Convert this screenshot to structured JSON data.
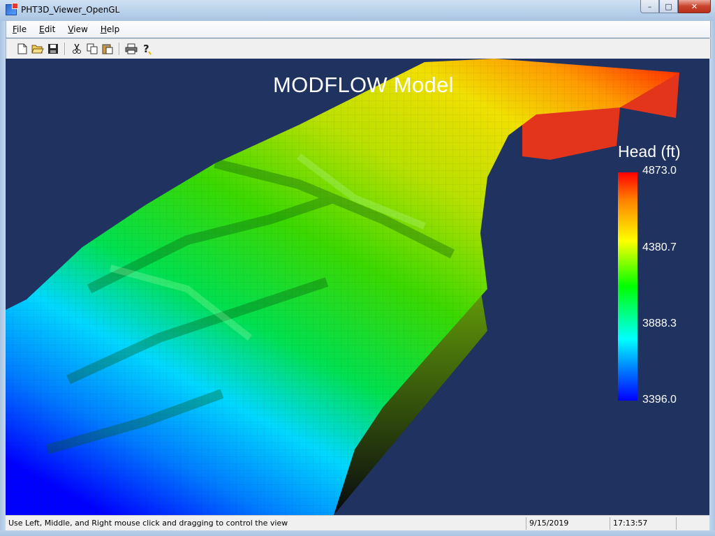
{
  "window": {
    "title": "PHT3D_Viewer_OpenGL",
    "controls": {
      "minimize": "–",
      "maximize": "□",
      "close": "✕"
    }
  },
  "menu": [
    "File",
    "Edit",
    "View",
    "Help"
  ],
  "toolbar": {
    "icons": [
      "new-icon",
      "open-icon",
      "save-icon",
      "cut-icon",
      "copy-icon",
      "paste-icon",
      "print-icon",
      "help-icon"
    ]
  },
  "viewport": {
    "title": "MODFLOW Model",
    "background": "#1f3260",
    "legend": {
      "title": "Head (ft)",
      "max": "4873.0",
      "mid_high": "4380.7",
      "mid_low": "3888.3",
      "min": "3396.0"
    }
  },
  "status": {
    "message": "Use Left, Middle, and Right mouse click and dragging to control the view",
    "date": "9/15/2019",
    "time": "17:13:57"
  }
}
